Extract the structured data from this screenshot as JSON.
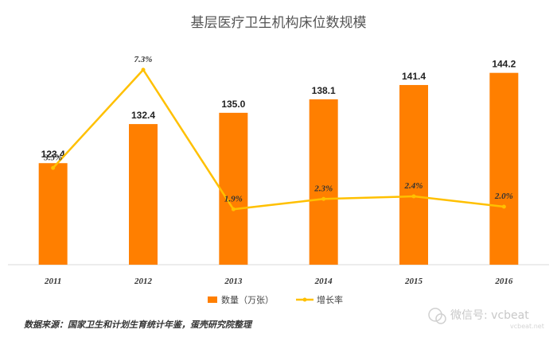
{
  "chart_data": {
    "type": "bar",
    "title": "基层医疗卫生机构床位数规模",
    "categories": [
      "2011",
      "2012",
      "2013",
      "2014",
      "2015",
      "2016"
    ],
    "series": [
      {
        "name": "数量（万张）",
        "type": "bar",
        "values": [
          123.4,
          132.4,
          135.0,
          138.1,
          141.4,
          144.2
        ],
        "labels": [
          "123.4",
          "132.4",
          "135.0",
          "138.1",
          "141.4",
          "144.2"
        ],
        "color": "#FF7F00"
      },
      {
        "name": "增长率",
        "type": "line",
        "values": [
          3.5,
          7.3,
          1.9,
          2.3,
          2.4,
          2.0
        ],
        "labels": [
          "3.5%",
          "7.3%",
          "1.9%",
          "2.3%",
          "2.4%",
          "2.0%"
        ],
        "color": "#FFC000"
      }
    ],
    "bar_ylim": [
      100,
      150
    ],
    "line_ylim": [
      0,
      8
    ],
    "legend_position": "bottom",
    "grid": false
  },
  "source_note": "数据来源：国家卫生和计划生育统计年鉴，蛋壳研究院整理",
  "watermark": {
    "text": "微信号: vcbeat",
    "sub": "vcbeat.net"
  },
  "colors": {
    "axis": "#d9d9d9"
  }
}
